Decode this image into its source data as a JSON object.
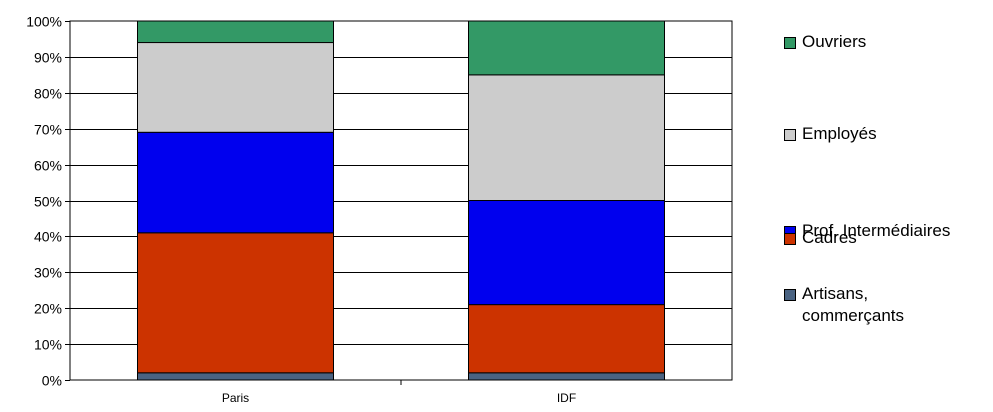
{
  "chart_data": {
    "type": "bar",
    "stacked": true,
    "percent": true,
    "categories": [
      "Paris",
      "IDF"
    ],
    "series": [
      {
        "name": "Artisans,\ncommerçants",
        "color": "#4a6382",
        "values": [
          2,
          2
        ]
      },
      {
        "name": "Cadres",
        "color": "#cc3300",
        "values": [
          39,
          19
        ]
      },
      {
        "name": "Prof. Intermédiaires",
        "color": "#0000ee",
        "values": [
          28,
          29
        ]
      },
      {
        "name": "Employés",
        "color": "#cccccc",
        "values": [
          25,
          35
        ]
      },
      {
        "name": "Ouvriers",
        "color": "#339966",
        "values": [
          6,
          15
        ]
      }
    ],
    "y_ticks": [
      "0%",
      "10%",
      "20%",
      "30%",
      "40%",
      "50%",
      "60%",
      "70%",
      "80%",
      "90%",
      "100%"
    ],
    "ylim": [
      0,
      100
    ],
    "grid": true,
    "legend_position": "right",
    "legend_order": [
      "Ouvriers",
      "Employés",
      "Prof. Intermédiaires",
      "Cadres",
      "Artisans,\ncommerçants"
    ]
  }
}
